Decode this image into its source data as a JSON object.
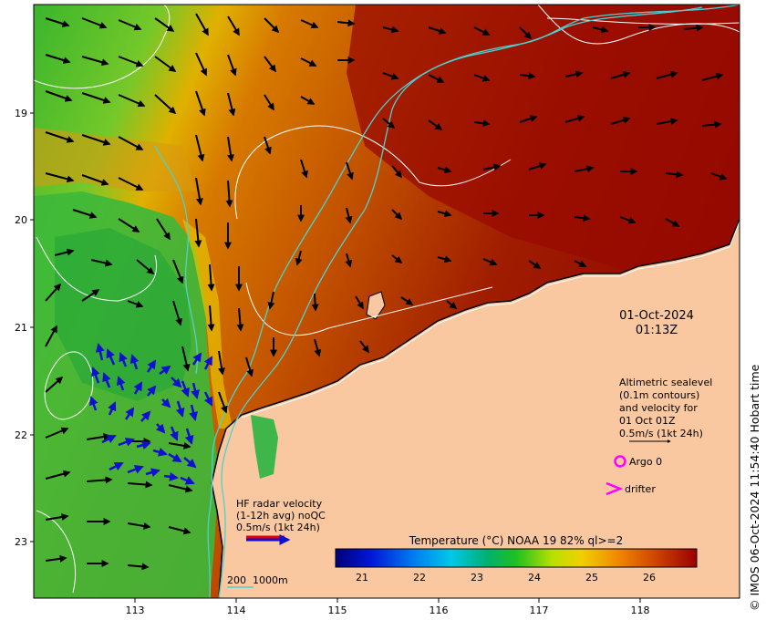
{
  "map": {
    "timestamp": {
      "date": "01-Oct-2024",
      "time": "01:13Z"
    },
    "lat_labels": [
      "19",
      "20",
      "21",
      "22",
      "23"
    ],
    "lon_labels": [
      "113",
      "114",
      "115",
      "116",
      "117",
      "118"
    ],
    "altimetry_legend": {
      "lines": [
        "Altimetric sealevel",
        "(0.1m contours)",
        "and velocity for",
        "01 Oct 01Z",
        "0.5m/s (1kt 24h)"
      ]
    },
    "argo_label": "Argo 0",
    "drifter_label": "drifter",
    "hf_radar_legend": {
      "lines": [
        "HF radar velocity",
        "(1-12h avg) noQC",
        "0.5m/s (1kt 24h)"
      ]
    },
    "bathymetry_legend": "200  1000m",
    "colorbar": {
      "title": "Temperature (°C) NOAA 19 82% ql>=2",
      "ticks": [
        "21",
        "22",
        "23",
        "24",
        "25",
        "26"
      ]
    },
    "credit": "© IMOS 06-Oct-2024 11:54:40 Hobart time",
    "colors": {
      "land": "#f9c8a0",
      "ocean_warm": "#a01000",
      "ocean_mid": "#d86a00",
      "ocean_cool": "#3cc030",
      "bathymetry": "#4fd0d0",
      "altimetry_arrows": "#000000",
      "hf_radar_arrows": "#1010d0",
      "argo": "#ff00ff",
      "drifter": "#ff00ff"
    }
  }
}
